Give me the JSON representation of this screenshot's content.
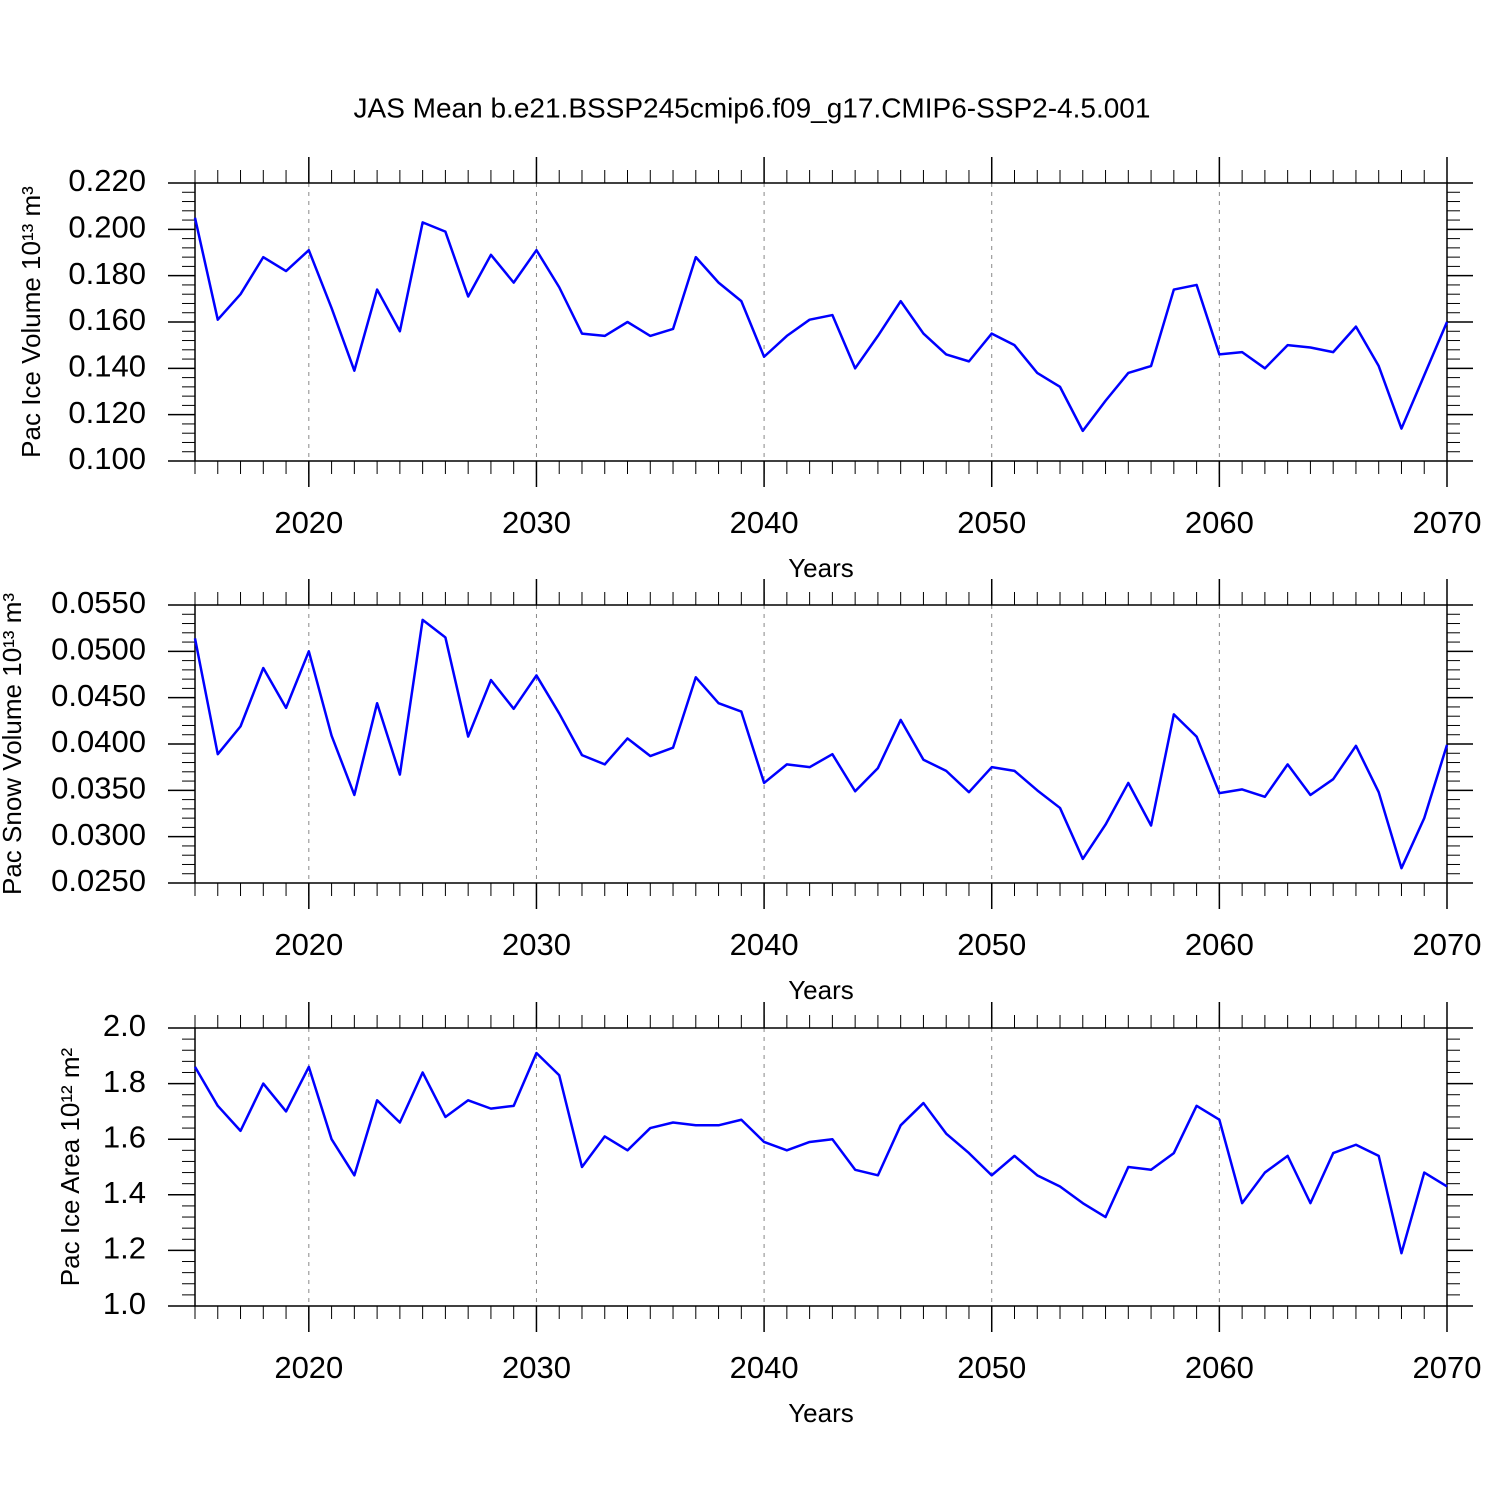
{
  "chart_data": [
    {
      "type": "line",
      "title": "JAS Mean b.e21.BSSP245cmip6.f09_g17.CMIP6-SSP2-4.5.001",
      "ylabel": "Pac Ice Volume 10¹³ m³",
      "xlabel": "Years",
      "color": "#0000ff",
      "x": [
        2015,
        2016,
        2017,
        2018,
        2019,
        2020,
        2021,
        2022,
        2023,
        2024,
        2025,
        2026,
        2027,
        2028,
        2029,
        2030,
        2031,
        2032,
        2033,
        2034,
        2035,
        2036,
        2037,
        2038,
        2039,
        2040,
        2041,
        2042,
        2043,
        2044,
        2045,
        2046,
        2047,
        2048,
        2049,
        2050,
        2051,
        2052,
        2053,
        2054,
        2055,
        2056,
        2057,
        2058,
        2059,
        2060,
        2061,
        2062,
        2063,
        2064,
        2065,
        2066,
        2067,
        2068,
        2069,
        2070
      ],
      "values": [
        0.205,
        0.161,
        0.172,
        0.188,
        0.182,
        0.191,
        0.166,
        0.139,
        0.174,
        0.156,
        0.203,
        0.199,
        0.171,
        0.189,
        0.177,
        0.191,
        0.175,
        0.155,
        0.154,
        0.16,
        0.154,
        0.157,
        0.188,
        0.177,
        0.169,
        0.145,
        0.154,
        0.161,
        0.163,
        0.14,
        0.154,
        0.169,
        0.155,
        0.146,
        0.143,
        0.155,
        0.15,
        0.138,
        0.132,
        0.113,
        0.126,
        0.138,
        0.141,
        0.174,
        0.176,
        0.146,
        0.147,
        0.14,
        0.15,
        0.149,
        0.147,
        0.158,
        0.141,
        0.114,
        0.137,
        0.16
      ],
      "xlim": [
        2015,
        2070
      ],
      "xticks": [
        2020,
        2030,
        2040,
        2050,
        2060,
        2070
      ],
      "ylim": [
        0.1,
        0.22
      ],
      "yticks": [
        {
          "value": 0.1,
          "label": "0.100"
        },
        {
          "value": 0.12,
          "label": "0.120"
        },
        {
          "value": 0.14,
          "label": "0.140"
        },
        {
          "value": 0.16,
          "label": "0.160"
        },
        {
          "value": 0.18,
          "label": "0.180"
        },
        {
          "value": 0.2,
          "label": "0.200"
        },
        {
          "value": 0.22,
          "label": "0.220"
        }
      ],
      "grid": true
    },
    {
      "type": "line",
      "ylabel": "Pac Snow Volume 10¹³ m³",
      "xlabel": "Years",
      "color": "#0000ff",
      "x": [
        2015,
        2016,
        2017,
        2018,
        2019,
        2020,
        2021,
        2022,
        2023,
        2024,
        2025,
        2026,
        2027,
        2028,
        2029,
        2030,
        2031,
        2032,
        2033,
        2034,
        2035,
        2036,
        2037,
        2038,
        2039,
        2040,
        2041,
        2042,
        2043,
        2044,
        2045,
        2046,
        2047,
        2048,
        2049,
        2050,
        2051,
        2052,
        2053,
        2054,
        2055,
        2056,
        2057,
        2058,
        2059,
        2060,
        2061,
        2062,
        2063,
        2064,
        2065,
        2066,
        2067,
        2068,
        2069,
        2070
      ],
      "values": [
        0.0514,
        0.0389,
        0.0419,
        0.0482,
        0.0439,
        0.05,
        0.0409,
        0.0345,
        0.0444,
        0.0367,
        0.0534,
        0.0515,
        0.0408,
        0.0469,
        0.0438,
        0.0474,
        0.0433,
        0.0388,
        0.0378,
        0.0406,
        0.0387,
        0.0396,
        0.0472,
        0.0444,
        0.0435,
        0.0358,
        0.0378,
        0.0375,
        0.0389,
        0.0349,
        0.0374,
        0.0426,
        0.0383,
        0.0371,
        0.0348,
        0.0375,
        0.0371,
        0.035,
        0.0331,
        0.0276,
        0.0313,
        0.0358,
        0.0312,
        0.0432,
        0.0408,
        0.0347,
        0.0351,
        0.0343,
        0.0378,
        0.0345,
        0.0362,
        0.0398,
        0.0348,
        0.0266,
        0.032,
        0.0399
      ],
      "xlim": [
        2015,
        2070
      ],
      "xticks": [
        2020,
        2030,
        2040,
        2050,
        2060,
        2070
      ],
      "ylim": [
        0.025,
        0.055
      ],
      "yticks": [
        {
          "value": 0.025,
          "label": "0.0250"
        },
        {
          "value": 0.03,
          "label": "0.0300"
        },
        {
          "value": 0.035,
          "label": "0.0350"
        },
        {
          "value": 0.04,
          "label": "0.0400"
        },
        {
          "value": 0.045,
          "label": "0.0450"
        },
        {
          "value": 0.05,
          "label": "0.0500"
        },
        {
          "value": 0.055,
          "label": "0.0550"
        }
      ],
      "grid": true
    },
    {
      "type": "line",
      "ylabel": "Pac Ice Area 10¹² m²",
      "xlabel": "Years",
      "color": "#0000ff",
      "x": [
        2015,
        2016,
        2017,
        2018,
        2019,
        2020,
        2021,
        2022,
        2023,
        2024,
        2025,
        2026,
        2027,
        2028,
        2029,
        2030,
        2031,
        2032,
        2033,
        2034,
        2035,
        2036,
        2037,
        2038,
        2039,
        2040,
        2041,
        2042,
        2043,
        2044,
        2045,
        2046,
        2047,
        2048,
        2049,
        2050,
        2051,
        2052,
        2053,
        2054,
        2055,
        2056,
        2057,
        2058,
        2059,
        2060,
        2061,
        2062,
        2063,
        2064,
        2065,
        2066,
        2067,
        2068,
        2069,
        2070
      ],
      "values": [
        1.86,
        1.72,
        1.63,
        1.8,
        1.7,
        1.86,
        1.6,
        1.47,
        1.74,
        1.66,
        1.84,
        1.68,
        1.74,
        1.71,
        1.72,
        1.91,
        1.83,
        1.5,
        1.61,
        1.56,
        1.64,
        1.66,
        1.65,
        1.65,
        1.67,
        1.59,
        1.56,
        1.59,
        1.6,
        1.49,
        1.47,
        1.65,
        1.73,
        1.62,
        1.55,
        1.47,
        1.54,
        1.47,
        1.43,
        1.37,
        1.32,
        1.5,
        1.49,
        1.55,
        1.72,
        1.67,
        1.37,
        1.48,
        1.54,
        1.37,
        1.55,
        1.58,
        1.54,
        1.19,
        1.48,
        1.43
      ],
      "xlim": [
        2015,
        2070
      ],
      "xticks": [
        2020,
        2030,
        2040,
        2050,
        2060,
        2070
      ],
      "ylim": [
        1.0,
        2.0
      ],
      "yticks": [
        {
          "value": 1.0,
          "label": "1.0"
        },
        1.2,
        1.4,
        1.6,
        1.8,
        {
          "value": 2.0,
          "label": "2.0"
        }
      ],
      "grid": true
    }
  ]
}
